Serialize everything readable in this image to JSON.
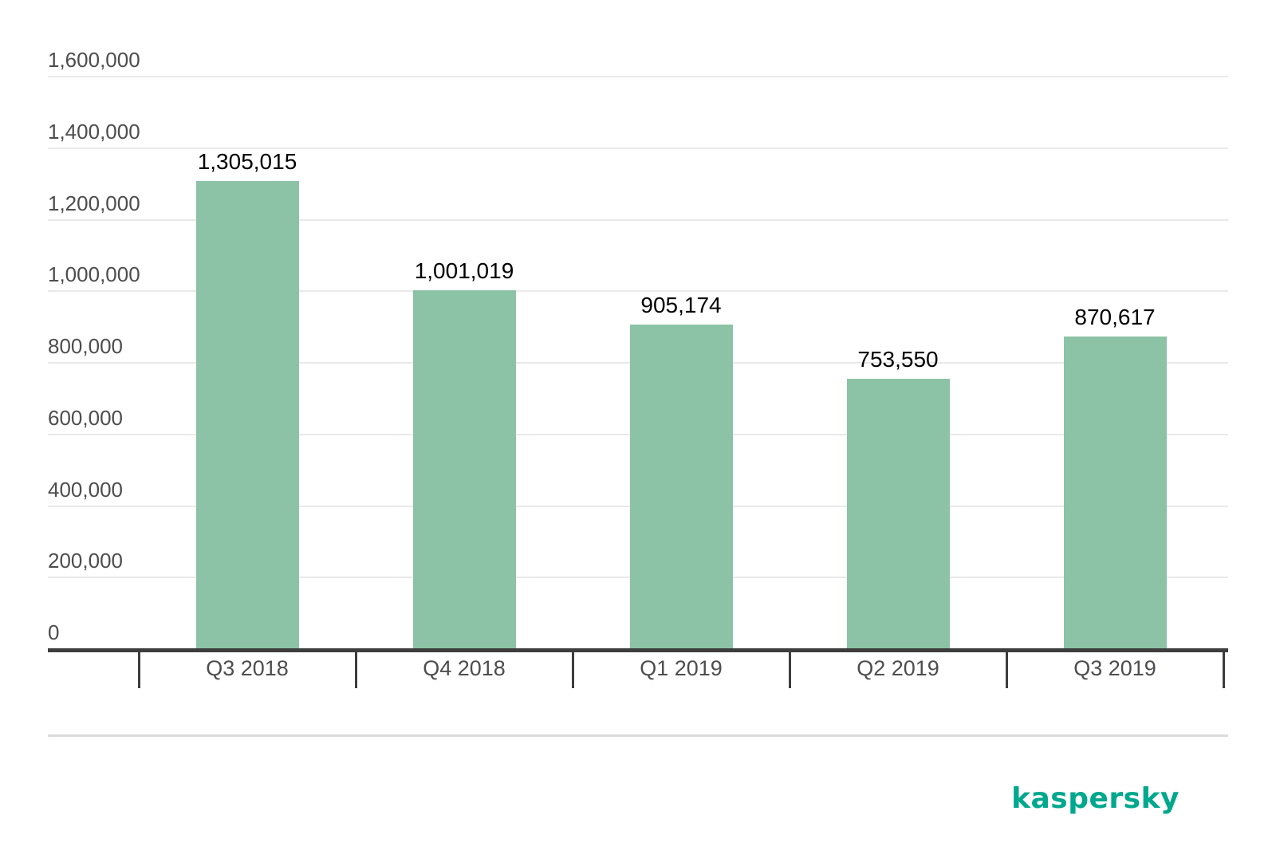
{
  "chart_data": {
    "type": "bar",
    "title": "",
    "xlabel": "",
    "ylabel": "",
    "categories": [
      "Q3 2018",
      "Q4 2018",
      "Q1 2019",
      "Q2 2019",
      "Q3 2019"
    ],
    "values": [
      1305015,
      1001019,
      905174,
      753550,
      870617
    ],
    "value_labels": [
      "1,305,015",
      "1,001,019",
      "905,174",
      "753,550",
      "870,617"
    ],
    "ylim": [
      0,
      1600000
    ],
    "ytick_step": 200000,
    "yticks": [
      0,
      200000,
      400000,
      600000,
      800000,
      1000000,
      1200000,
      1400000,
      1600000
    ],
    "ytick_labels": [
      "0",
      "200,000",
      "400,000",
      "600,000",
      "800,000",
      "1,000,000",
      "1,200,000",
      "1,400,000",
      "1,600,000"
    ],
    "grid": true,
    "legend_position": "none",
    "bar_color": "#8CC3A6"
  },
  "colors": {
    "background": "#FFFFFF",
    "bar": "#8CC3A6",
    "gridline": "#E9E9E9",
    "axis": "#3D3D3D",
    "tick_label": "#4D4D4F",
    "value_label": "#000000",
    "separator": "#DBDBDB",
    "brand": "#00A88E"
  },
  "brand": {
    "logo_text": "kaspersky"
  }
}
